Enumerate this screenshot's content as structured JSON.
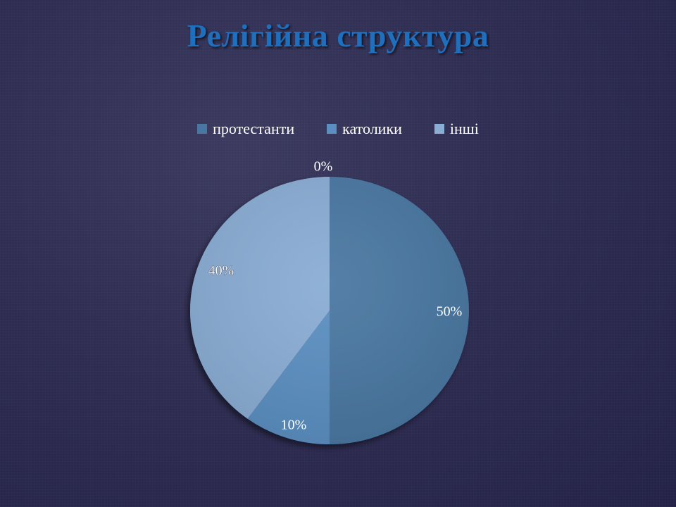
{
  "chart_data": {
    "type": "pie",
    "title": "Релігійна структура",
    "categories": [
      "протестанти",
      "католики",
      "інші",
      ""
    ],
    "values": [
      50,
      10,
      40,
      0
    ],
    "data_labels": [
      "50%",
      "10%",
      "40%",
      "0%"
    ],
    "colors": [
      "#4a77a1",
      "#5b8fc1",
      "#8aadd4",
      "#8aadd4"
    ],
    "legend_position": "top",
    "legend": [
      {
        "label": "протестанти",
        "color": "#4a77a1"
      },
      {
        "label": "католики",
        "color": "#5b8fc1"
      },
      {
        "label": "інші",
        "color": "#8aadd4"
      }
    ]
  }
}
